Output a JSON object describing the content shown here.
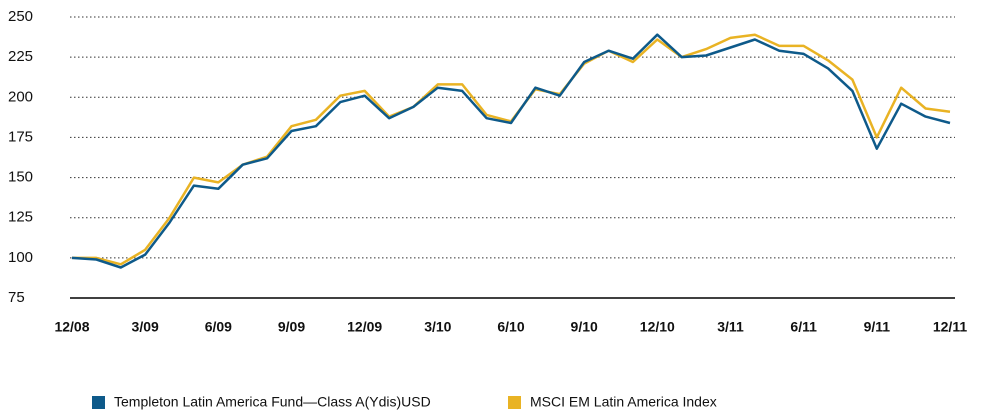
{
  "chart_data": {
    "type": "line",
    "categories": [
      "12/08",
      null,
      null,
      "3/09",
      null,
      null,
      "6/09",
      null,
      null,
      "9/09",
      null,
      null,
      "12/09",
      null,
      null,
      "3/10",
      null,
      null,
      "6/10",
      null,
      null,
      "9/10",
      null,
      null,
      "12/10",
      null,
      null,
      "3/11",
      null,
      null,
      "6/11",
      null,
      null,
      "9/11",
      null,
      null,
      "12/11"
    ],
    "series": [
      {
        "name": "Templeton Latin America Fund—Class A(Ydis)USD",
        "color": "#0e5a8a",
        "values": [
          100,
          99,
          94,
          102,
          122,
          145,
          143,
          158,
          162,
          179,
          182,
          197,
          201,
          187,
          194,
          206,
          204,
          187,
          184,
          206,
          201,
          222,
          229,
          224,
          239,
          225,
          226,
          231,
          236,
          229,
          227,
          218,
          204,
          168,
          196,
          188,
          184
        ]
      },
      {
        "name": "MSCI EM Latin America Index",
        "color": "#e9b324",
        "values": [
          100,
          100,
          96,
          105,
          125,
          150,
          147,
          158,
          163,
          182,
          186,
          201,
          204,
          188,
          194,
          208,
          208,
          189,
          185,
          205,
          202,
          221,
          229,
          222,
          236,
          225,
          230,
          237,
          239,
          232,
          232,
          223,
          211,
          175,
          206,
          193,
          191
        ]
      }
    ],
    "ylim": [
      75,
      250
    ],
    "yticks": [
      75,
      100,
      125,
      150,
      175,
      200,
      225,
      250
    ],
    "grid": true
  }
}
